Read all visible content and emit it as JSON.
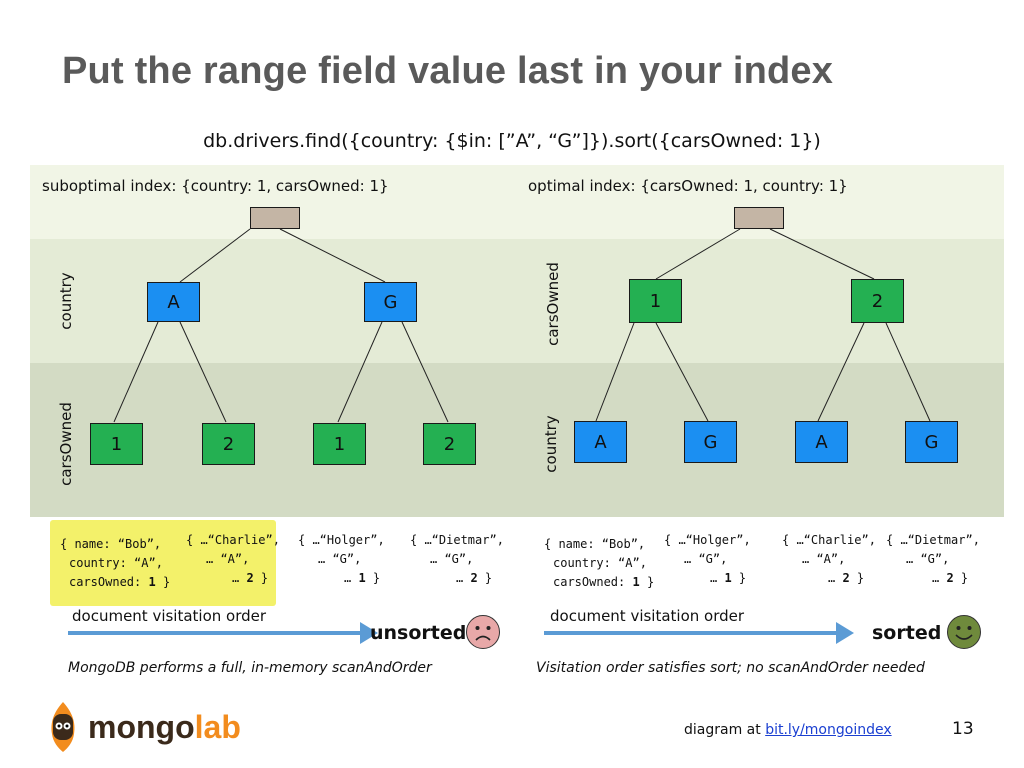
{
  "title": "Put the range field value last in your index",
  "query": "db.drivers.find({country: {$in: [”A”, “G”]}).sort({carsOwned: 1})",
  "colors": {
    "country_node": "#1b8ff2",
    "carsOwned_node": "#24b052",
    "root_node": "#c4b5a5",
    "arrow": "#5b9bd5",
    "highlight": "#f3f16a",
    "sad_face": "#e8a8a8",
    "happy_face": "#6f8a3c"
  },
  "left": {
    "index_label": "suboptimal index: {country: 1, carsOwned: 1}",
    "level1_label": "country",
    "level2_label": "carsOwned",
    "level1_nodes": [
      "A",
      "G"
    ],
    "level2_nodes": [
      "1",
      "2",
      "1",
      "2"
    ],
    "docs": [
      {
        "line1": "{ name: “Bob”,",
        "line2": "country: “A”,",
        "line3a": "carsOwned: ",
        "line3b": "1",
        "line3c": " }"
      },
      {
        "line1": "{ …“Charlie”,",
        "line2": "… “A”,",
        "line3a": "… ",
        "line3b": "2",
        "line3c": " }"
      },
      {
        "line1": "{ …“Holger”,",
        "line2": "… “G”,",
        "line3a": "… ",
        "line3b": "1",
        "line3c": " }"
      },
      {
        "line1": "{ …“Dietmar”,",
        "line2": "… “G”,",
        "line3a": "… ",
        "line3b": "2",
        "line3c": " }"
      }
    ],
    "order_label": "document visitation order",
    "status": "unsorted",
    "face_icon": "sad-face-icon",
    "caption": "MongoDB performs a full, in-memory scanAndOrder"
  },
  "right": {
    "index_label": "optimal index: {carsOwned: 1, country: 1}",
    "level1_label": "carsOwned",
    "level2_label": "country",
    "level1_nodes": [
      "1",
      "2"
    ],
    "level2_nodes": [
      "A",
      "G",
      "A",
      "G"
    ],
    "docs": [
      {
        "line1": "{ name: “Bob”,",
        "line2": "country: “A”,",
        "line3a": "carsOwned: ",
        "line3b": "1",
        "line3c": " }"
      },
      {
        "line1": "{ …“Holger”,",
        "line2": "… “G”,",
        "line3a": "… ",
        "line3b": "1",
        "line3c": " }"
      },
      {
        "line1": "{ …“Charlie”,",
        "line2": "… “A”,",
        "line3a": "… ",
        "line3b": "2",
        "line3c": " }"
      },
      {
        "line1": "{ …“Dietmar”,",
        "line2": "… “G”,",
        "line3a": "… ",
        "line3b": "2",
        "line3c": " }"
      }
    ],
    "order_label": "document visitation order",
    "status": "sorted",
    "face_icon": "happy-face-icon",
    "caption": "Visitation order satisfies sort; no scanAndOrder needed"
  },
  "logo": {
    "part1": "mongo",
    "part2": "lab",
    "icon": "mongolab-leaf-icon"
  },
  "footer": {
    "prefix": "diagram at ",
    "link": "bit.ly/mongoindex "
  },
  "page_number": "13"
}
